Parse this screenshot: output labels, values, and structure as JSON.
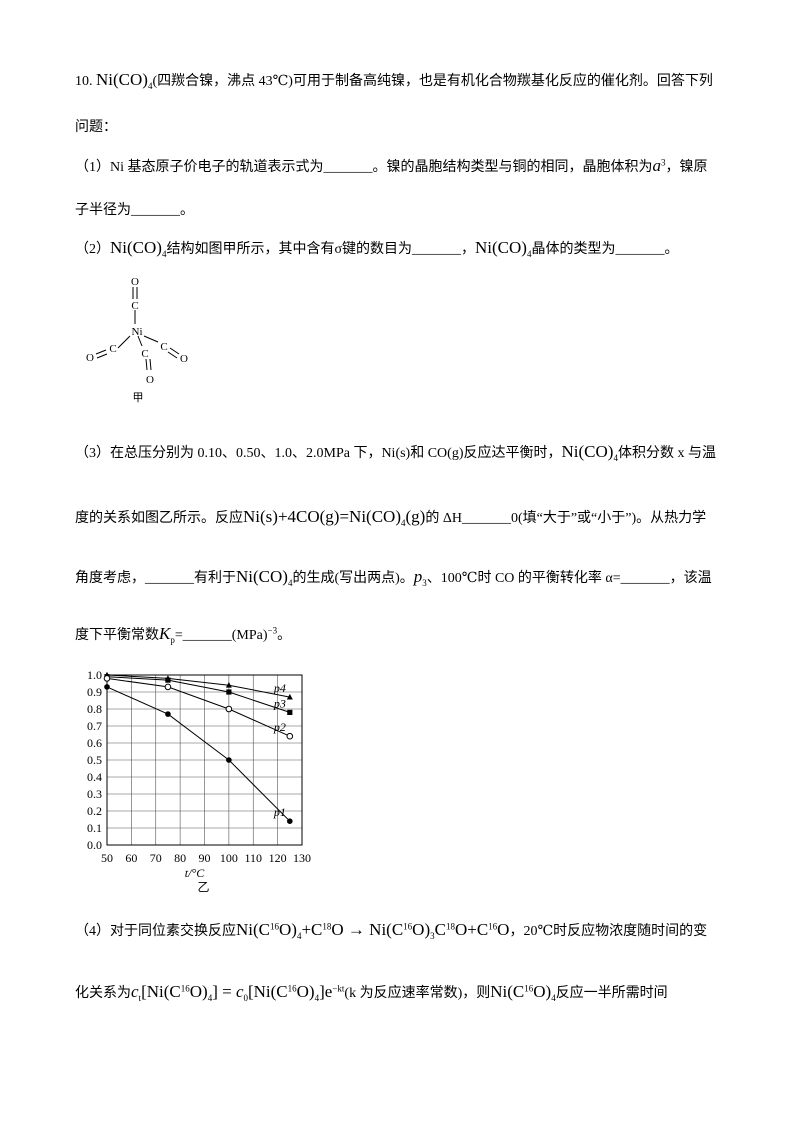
{
  "question": {
    "number": "10.",
    "intro": [
      "Ni(CO)",
      "4",
      "(四羰合镍，沸点 43℃)可用于制备高纯镍，也是有机化合物羰基化反应的催化剂。回答下列",
      "问题："
    ],
    "part1": [
      "（1）Ni 基态原子价电子的轨道表示式为_______。镍的晶胞结构类型与铜的相同，晶胞体积为",
      "a",
      "3",
      "，镍原",
      "子半径为_______。"
    ],
    "part2": [
      "（2）",
      "Ni(CO)",
      "4",
      "结构如图甲所示，其中含有σ键的数目为_______，",
      "Ni(CO)",
      "4",
      "晶体的类型为_______。"
    ],
    "structure": {
      "atoms": [
        "O",
        "C",
        "Ni",
        "O",
        "C",
        "C",
        "O",
        "C",
        "O"
      ],
      "caption": "甲"
    },
    "part3": [
      "（3）在总压分别为 0.10、0.50、1.0、2.0MPa 下，Ni(s)和 CO(g)反应达平衡时，",
      "Ni(CO)",
      "4",
      "体积分数 x 与温",
      "度的关系如图乙所示。反应",
      "Ni(s)+4CO(g)=Ni(CO)",
      "4",
      "(g)",
      "的 ΔH_______0(填“大于”或“小于”)。从热力学",
      "角度考虑，_______有利于",
      "Ni(CO)",
      "4",
      "的生成(写出两点)。",
      "p",
      "3",
      "、100℃时 CO 的平衡转化率 α=_______，该温",
      "度下平衡常数",
      "K",
      "p",
      "=",
      "_______(MPa)",
      "−3",
      "。"
    ],
    "part4": [
      "（4）对于同位素交换反应",
      "Ni(C",
      "16",
      "O)",
      "4",
      "+C",
      "18",
      "O → Ni(C",
      "16",
      "O)",
      "3",
      "C",
      "18",
      "O+C",
      "16",
      "O",
      "，20℃时反应物浓度随时间的变",
      "化关系为",
      "c",
      "t",
      "[Ni(C",
      "16",
      "O)",
      "4",
      "] = ",
      "c",
      "0",
      "[Ni(C",
      "16",
      "O)",
      "4",
      "]e",
      "−kt",
      "(k 为反应速率常数)，则",
      "Ni(C",
      "16",
      "O)",
      "4",
      "反应一半所需时间"
    ]
  },
  "chart_data": {
    "type": "line",
    "x_label": "t/°C",
    "caption": "乙",
    "xlim": [
      50,
      130
    ],
    "ylim": [
      0,
      1
    ],
    "xticks": [
      50,
      60,
      70,
      80,
      90,
      100,
      110,
      120,
      130
    ],
    "yticks": [
      {
        "value": 0,
        "label": "0.0"
      },
      0.1,
      0.2,
      0.3,
      0.4,
      0.5,
      0.6,
      0.7,
      0.8,
      0.9,
      {
        "value": 1,
        "label": "1.0"
      }
    ],
    "grid": true,
    "series": [
      {
        "name": "p4",
        "color": "#000000",
        "marker": "triangle",
        "x": [
          50,
          75,
          100,
          125
        ],
        "values": [
          1.0,
          0.98,
          0.94,
          0.87
        ]
      },
      {
        "name": "p3",
        "color": "#000000",
        "marker": "square",
        "x": [
          50,
          75,
          100,
          125
        ],
        "values": [
          0.99,
          0.97,
          0.9,
          0.78
        ]
      },
      {
        "name": "p2",
        "color": "#000000",
        "marker": "open-circle",
        "x": [
          50,
          75,
          100,
          125
        ],
        "values": [
          0.98,
          0.93,
          0.8,
          0.64
        ]
      },
      {
        "name": "p1",
        "color": "#000000",
        "marker": "circle",
        "x": [
          50,
          75,
          100,
          125
        ],
        "values": [
          0.93,
          0.77,
          0.5,
          0.14
        ]
      }
    ]
  }
}
